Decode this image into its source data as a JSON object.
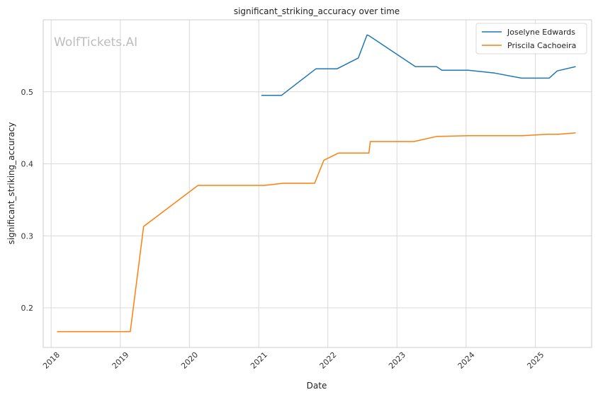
{
  "chart_data": {
    "type": "line",
    "title": "significant_striking_accuracy over time",
    "xlabel": "Date",
    "ylabel": "significant_striking_accuracy",
    "watermark": "WolfTickets.AI",
    "xlim": [
      "2017-11-20",
      "2025-10-25"
    ],
    "ylim": [
      0.145,
      0.6
    ],
    "x_ticks": [
      "2018",
      "2019",
      "2020",
      "2021",
      "2022",
      "2023",
      "2024",
      "2025"
    ],
    "y_ticks": [
      "0.2",
      "0.3",
      "0.4",
      "0.5"
    ],
    "grid": true,
    "legend_position": "top-right",
    "series": [
      {
        "name": "Joselyne Edwards",
        "color": "#1f77b4",
        "points": [
          [
            "2021-01-15",
            0.495
          ],
          [
            "2021-05-01",
            0.495
          ],
          [
            "2021-10-30",
            0.532
          ],
          [
            "2022-02-19",
            0.532
          ],
          [
            "2022-06-11",
            0.547
          ],
          [
            "2022-07-27",
            0.579
          ],
          [
            "2022-08-06",
            0.578
          ],
          [
            "2023-04-08",
            0.535
          ],
          [
            "2023-07-29",
            0.535
          ],
          [
            "2023-08-26",
            0.53
          ],
          [
            "2024-01-13",
            0.53
          ],
          [
            "2024-06-01",
            0.526
          ],
          [
            "2024-10-19",
            0.519
          ],
          [
            "2025-03-15",
            0.519
          ],
          [
            "2025-04-26",
            0.529
          ],
          [
            "2025-08-02",
            0.535
          ]
        ]
      },
      {
        "name": "Priscila Cachoeira",
        "color": "#ff7f0e",
        "points": [
          [
            "2018-02-01",
            0.167
          ],
          [
            "2019-02-23",
            0.167
          ],
          [
            "2019-05-04",
            0.313
          ],
          [
            "2020-02-15",
            0.37
          ],
          [
            "2021-01-30",
            0.37
          ],
          [
            "2021-05-08",
            0.373
          ],
          [
            "2021-10-23",
            0.373
          ],
          [
            "2021-12-11",
            0.405
          ],
          [
            "2022-02-26",
            0.415
          ],
          [
            "2022-08-06",
            0.415
          ],
          [
            "2022-08-13",
            0.431
          ],
          [
            "2023-04-01",
            0.431
          ],
          [
            "2023-07-29",
            0.438
          ],
          [
            "2024-01-13",
            0.439
          ],
          [
            "2024-10-26",
            0.439
          ],
          [
            "2025-03-01",
            0.441
          ],
          [
            "2025-05-03",
            0.441
          ],
          [
            "2025-08-02",
            0.443
          ]
        ]
      }
    ]
  }
}
